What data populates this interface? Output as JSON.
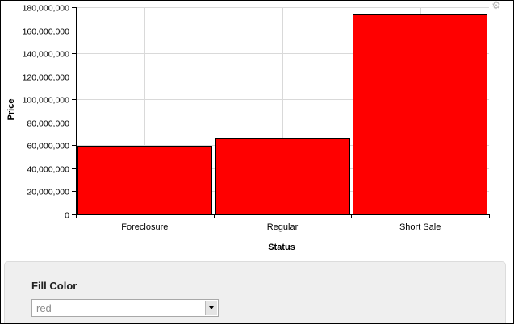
{
  "chart_data": {
    "type": "bar",
    "title": "",
    "xlabel": "Status",
    "ylabel": "Price",
    "categories": [
      "Foreclosure",
      "Regular",
      "Short Sale"
    ],
    "values": [
      59200000,
      66300000,
      174400000
    ],
    "ylim": [
      0,
      180000000
    ],
    "yticks": [
      0,
      20000000,
      40000000,
      60000000,
      80000000,
      100000000,
      120000000,
      140000000,
      160000000,
      180000000
    ],
    "ytick_labels": [
      "0",
      "20,000,000",
      "40,000,000",
      "60,000,000",
      "80,000,000",
      "100,000,000",
      "120,000,000",
      "140,000,000",
      "160,000,000",
      "180,000,000"
    ],
    "grid": true,
    "bar_color": "#ff0000"
  },
  "settings_panel": {
    "fill_color_label": "Fill Color",
    "fill_color_value": "red"
  },
  "icons": {
    "settings": "gear-icon",
    "dropdown": "chevron-down-icon"
  }
}
